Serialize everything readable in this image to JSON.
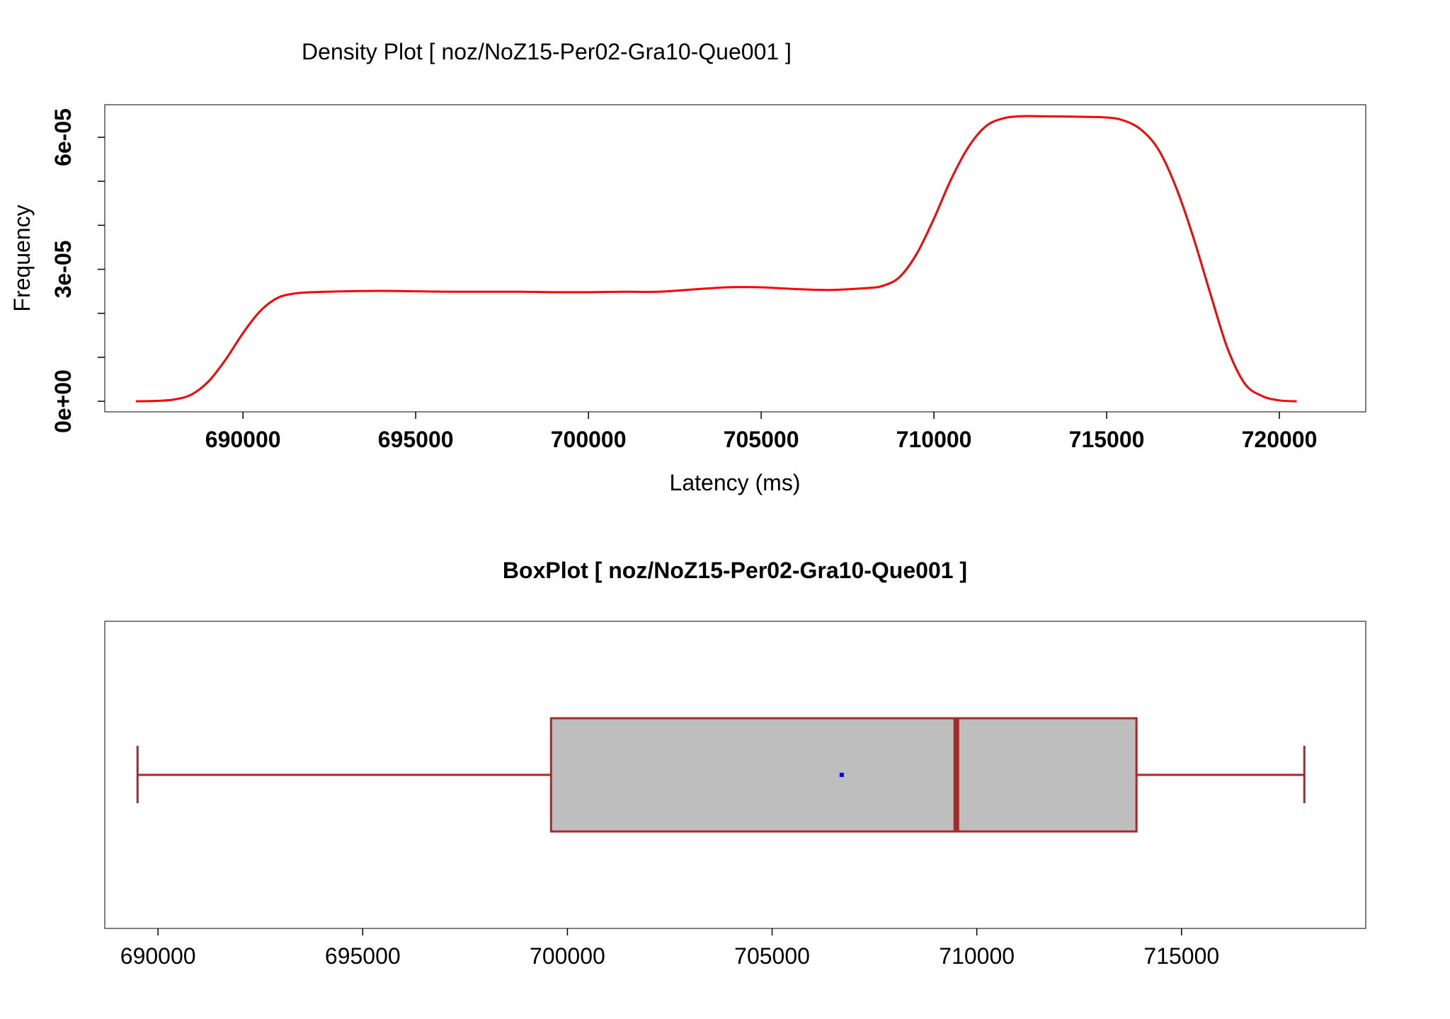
{
  "colors": {
    "density_line": "#ff0000",
    "box_fill": "#bebebe",
    "box_stroke": "#a52a2a",
    "mean_point": "#0000ff",
    "frame": "#555555"
  },
  "chart_data": [
    {
      "type": "line",
      "title": "Density Plot [ noz/NoZ15-Per02-Gra10-Que001 ]",
      "xlabel": "Latency (ms)",
      "ylabel": "Frequency",
      "xlim": [
        686000,
        722500
      ],
      "ylim": [
        -2.4e-06,
        6.74e-05
      ],
      "x_ticks": [
        690000,
        695000,
        700000,
        705000,
        710000,
        715000,
        720000
      ],
      "x_tick_labels": [
        "690000",
        "695000",
        "700000",
        "705000",
        "710000",
        "715000",
        "720000"
      ],
      "y_ticks": [
        0,
        1e-05,
        2e-05,
        3e-05,
        4e-05,
        5e-05,
        6e-05
      ],
      "y_tick_labels": [
        "0e+00",
        "",
        "",
        "3e-05",
        "",
        "",
        "6e-05"
      ],
      "grid": false,
      "series": [
        {
          "x": [
            686900,
            687500,
            688000,
            688500,
            689000,
            689500,
            690000,
            690500,
            691000,
            691500,
            692000,
            693000,
            694000,
            695000,
            696000,
            697000,
            698000,
            699000,
            700000,
            701000,
            702000,
            703000,
            704000,
            705000,
            706000,
            707000,
            708000,
            708500,
            709000,
            709500,
            710000,
            710500,
            711000,
            711500,
            712000,
            712500,
            713000,
            714000,
            715000,
            715500,
            716000,
            716500,
            717000,
            717500,
            718000,
            718500,
            719000,
            719500,
            720000,
            720500
          ],
          "y": [
            0.0,
            1e-07,
            4e-07,
            1.5e-06,
            4.5e-06,
            9.5e-06,
            1.55e-05,
            2.05e-05,
            2.35e-05,
            2.45e-05,
            2.48e-05,
            2.5e-05,
            2.51e-05,
            2.5e-05,
            2.49e-05,
            2.49e-05,
            2.49e-05,
            2.48e-05,
            2.48e-05,
            2.49e-05,
            2.49e-05,
            2.54e-05,
            2.59e-05,
            2.59e-05,
            2.55e-05,
            2.53e-05,
            2.57e-05,
            2.62e-05,
            2.82e-05,
            3.35e-05,
            4.15e-05,
            5.05e-05,
            5.78e-05,
            6.25e-05,
            6.43e-05,
            6.48e-05,
            6.48e-05,
            6.47e-05,
            6.45e-05,
            6.38e-05,
            6.17e-05,
            5.72e-05,
            4.88e-05,
            3.75e-05,
            2.45e-05,
            1.2e-05,
            4e-06,
            1.2e-06,
            2e-07,
            0.0
          ]
        }
      ]
    },
    {
      "type": "box",
      "title": "BoxPlot [ noz/NoZ15-Per02-Gra10-Que001 ]",
      "xlim": [
        688700,
        719500
      ],
      "x_ticks": [
        690000,
        695000,
        700000,
        705000,
        710000,
        715000
      ],
      "x_tick_labels": [
        "690000",
        "695000",
        "700000",
        "705000",
        "710000",
        "715000"
      ],
      "whisker_low": 689500,
      "q1": 699600,
      "median": 709500,
      "q3": 713900,
      "whisker_high": 718000,
      "mean": 706700
    }
  ]
}
